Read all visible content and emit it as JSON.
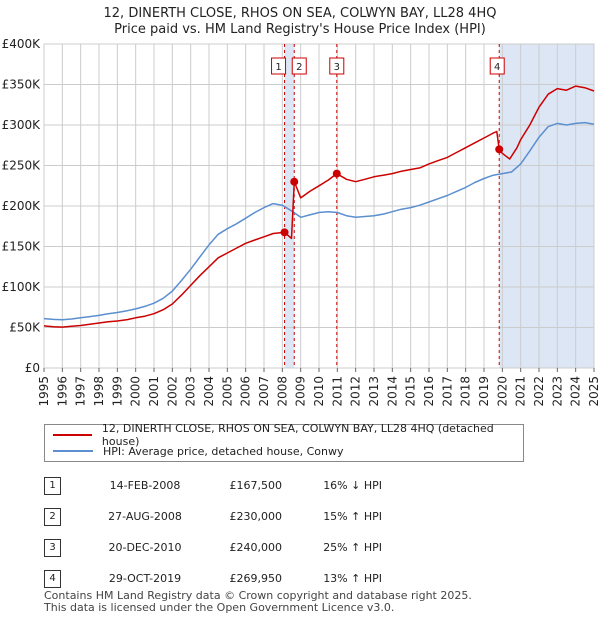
{
  "title": "12, DINERTH CLOSE, RHOS ON SEA, COLWYN BAY, LL28 4HQ",
  "subtitle": "Price paid vs. HM Land Registry's House Price Index (HPI)",
  "colors": {
    "property": "#cc0000",
    "hpi": "#5b8fd0",
    "shade": "#dde6f5",
    "grid": "#cccccc"
  },
  "chart_data": {
    "type": "line",
    "ylim": [
      0,
      400000
    ],
    "xlim": [
      1995.0,
      2025.0
    ],
    "y_ticks": [
      {
        "value": 0,
        "label": "£0"
      },
      {
        "value": 50000,
        "label": "£50K"
      },
      {
        "value": 100000,
        "label": "£100K"
      },
      {
        "value": 150000,
        "label": "£150K"
      },
      {
        "value": 200000,
        "label": "£200K"
      },
      {
        "value": 250000,
        "label": "£250K"
      },
      {
        "value": 300000,
        "label": "£300K"
      },
      {
        "value": 350000,
        "label": "£350K"
      },
      {
        "value": 400000,
        "label": "£400K"
      }
    ],
    "x_ticks": [
      "1995",
      "1996",
      "1997",
      "1998",
      "1999",
      "2000",
      "2001",
      "2002",
      "2003",
      "2004",
      "2005",
      "2006",
      "2007",
      "2008",
      "2009",
      "2010",
      "2011",
      "2012",
      "2013",
      "2014",
      "2015",
      "2016",
      "2017",
      "2018",
      "2019",
      "2020",
      "2021",
      "2022",
      "2023",
      "2024",
      "2025"
    ],
    "series": [
      {
        "name": "12, DINERTH CLOSE, RHOS ON SEA, COLWYN BAY, LL28 4HQ (detached house)",
        "color": "#cc0000",
        "points": [
          [
            1995.0,
            52000
          ],
          [
            1995.5,
            51000
          ],
          [
            1996.0,
            50500
          ],
          [
            1996.5,
            51500
          ],
          [
            1997.0,
            52500
          ],
          [
            1997.5,
            54000
          ],
          [
            1998.0,
            55500
          ],
          [
            1998.5,
            57000
          ],
          [
            1999.0,
            58000
          ],
          [
            1999.5,
            59500
          ],
          [
            2000.0,
            62000
          ],
          [
            2000.5,
            64000
          ],
          [
            2001.0,
            67000
          ],
          [
            2001.5,
            72000
          ],
          [
            2002.0,
            79000
          ],
          [
            2002.5,
            90000
          ],
          [
            2003.0,
            102000
          ],
          [
            2003.5,
            114000
          ],
          [
            2004.0,
            125000
          ],
          [
            2004.5,
            136000
          ],
          [
            2005.0,
            142000
          ],
          [
            2005.5,
            148000
          ],
          [
            2006.0,
            154000
          ],
          [
            2006.5,
            158000
          ],
          [
            2007.0,
            162000
          ],
          [
            2007.5,
            166000
          ],
          [
            2007.9,
            167000
          ],
          [
            2008.12,
            167500
          ],
          [
            2008.3,
            164000
          ],
          [
            2008.5,
            160000
          ],
          [
            2008.65,
            230000
          ],
          [
            2009.0,
            210000
          ],
          [
            2009.5,
            218000
          ],
          [
            2010.0,
            225000
          ],
          [
            2010.5,
            232000
          ],
          [
            2010.97,
            240000
          ],
          [
            2011.5,
            233000
          ],
          [
            2012.0,
            230000
          ],
          [
            2012.5,
            233000
          ],
          [
            2013.0,
            236000
          ],
          [
            2013.5,
            238000
          ],
          [
            2014.0,
            240000
          ],
          [
            2014.5,
            243000
          ],
          [
            2015.0,
            245000
          ],
          [
            2015.5,
            247000
          ],
          [
            2016.0,
            252000
          ],
          [
            2016.5,
            256000
          ],
          [
            2017.0,
            260000
          ],
          [
            2017.5,
            266000
          ],
          [
            2018.0,
            272000
          ],
          [
            2018.5,
            278000
          ],
          [
            2019.0,
            284000
          ],
          [
            2019.5,
            290000
          ],
          [
            2019.7,
            292000
          ],
          [
            2019.83,
            269950
          ],
          [
            2020.0,
            265000
          ],
          [
            2020.4,
            258000
          ],
          [
            2020.8,
            272000
          ],
          [
            2021.0,
            282000
          ],
          [
            2021.5,
            300000
          ],
          [
            2022.0,
            322000
          ],
          [
            2022.5,
            338000
          ],
          [
            2023.0,
            345000
          ],
          [
            2023.5,
            343000
          ],
          [
            2024.0,
            348000
          ],
          [
            2024.5,
            346000
          ],
          [
            2025.0,
            342000
          ]
        ]
      },
      {
        "name": "HPI: Average price, detached house, Conwy",
        "color": "#5b8fd0",
        "points": [
          [
            1995.0,
            61000
          ],
          [
            1995.5,
            60000
          ],
          [
            1996.0,
            59500
          ],
          [
            1996.5,
            60500
          ],
          [
            1997.0,
            62000
          ],
          [
            1997.5,
            63500
          ],
          [
            1998.0,
            65000
          ],
          [
            1998.5,
            67000
          ],
          [
            1999.0,
            68500
          ],
          [
            1999.5,
            70500
          ],
          [
            2000.0,
            73000
          ],
          [
            2000.5,
            76000
          ],
          [
            2001.0,
            80000
          ],
          [
            2001.5,
            86000
          ],
          [
            2002.0,
            95000
          ],
          [
            2002.5,
            108000
          ],
          [
            2003.0,
            122000
          ],
          [
            2003.5,
            137000
          ],
          [
            2004.0,
            152000
          ],
          [
            2004.5,
            165000
          ],
          [
            2005.0,
            172000
          ],
          [
            2005.5,
            178000
          ],
          [
            2006.0,
            185000
          ],
          [
            2006.5,
            192000
          ],
          [
            2007.0,
            198000
          ],
          [
            2007.5,
            203000
          ],
          [
            2008.0,
            201000
          ],
          [
            2008.5,
            194000
          ],
          [
            2009.0,
            186000
          ],
          [
            2009.5,
            189000
          ],
          [
            2010.0,
            192000
          ],
          [
            2010.5,
            193000
          ],
          [
            2011.0,
            192000
          ],
          [
            2011.5,
            188000
          ],
          [
            2012.0,
            186000
          ],
          [
            2012.5,
            187000
          ],
          [
            2013.0,
            188000
          ],
          [
            2013.5,
            190000
          ],
          [
            2014.0,
            193000
          ],
          [
            2014.5,
            196000
          ],
          [
            2015.0,
            198000
          ],
          [
            2015.5,
            201000
          ],
          [
            2016.0,
            205000
          ],
          [
            2016.5,
            209000
          ],
          [
            2017.0,
            213000
          ],
          [
            2017.5,
            218000
          ],
          [
            2018.0,
            223000
          ],
          [
            2018.5,
            229000
          ],
          [
            2019.0,
            234000
          ],
          [
            2019.5,
            238000
          ],
          [
            2020.0,
            240000
          ],
          [
            2020.5,
            242000
          ],
          [
            2021.0,
            252000
          ],
          [
            2021.5,
            268000
          ],
          [
            2022.0,
            285000
          ],
          [
            2022.5,
            298000
          ],
          [
            2023.0,
            302000
          ],
          [
            2023.5,
            300000
          ],
          [
            2024.0,
            302000
          ],
          [
            2024.5,
            303000
          ],
          [
            2025.0,
            301000
          ]
        ]
      }
    ],
    "sales": [
      {
        "id": "1",
        "x": 2008.12,
        "price": 167500
      },
      {
        "id": "2",
        "x": 2008.65,
        "price": 230000
      },
      {
        "id": "3",
        "x": 2010.97,
        "price": 240000
      },
      {
        "id": "4",
        "x": 2019.83,
        "price": 269950
      }
    ],
    "shaded_ranges": [
      [
        2008.12,
        2008.65
      ],
      [
        2019.83,
        2025.0
      ]
    ]
  },
  "legend": {
    "property_label": "12, DINERTH CLOSE, RHOS ON SEA, COLWYN BAY, LL28 4HQ (detached house)",
    "hpi_label": "HPI: Average price, detached house, Conwy"
  },
  "table": [
    {
      "num": "1",
      "date": "14-FEB-2008",
      "price": "£167,500",
      "hpi": "16% ↓ HPI"
    },
    {
      "num": "2",
      "date": "27-AUG-2008",
      "price": "£230,000",
      "hpi": "15% ↑ HPI"
    },
    {
      "num": "3",
      "date": "20-DEC-2010",
      "price": "£240,000",
      "hpi": "25% ↑ HPI"
    },
    {
      "num": "4",
      "date": "29-OCT-2019",
      "price": "£269,950",
      "hpi": "13% ↑ HPI"
    }
  ],
  "footer": {
    "line1": "Contains HM Land Registry data © Crown copyright and database right 2025.",
    "line2": "This data is licensed under the Open Government Licence v3.0."
  }
}
